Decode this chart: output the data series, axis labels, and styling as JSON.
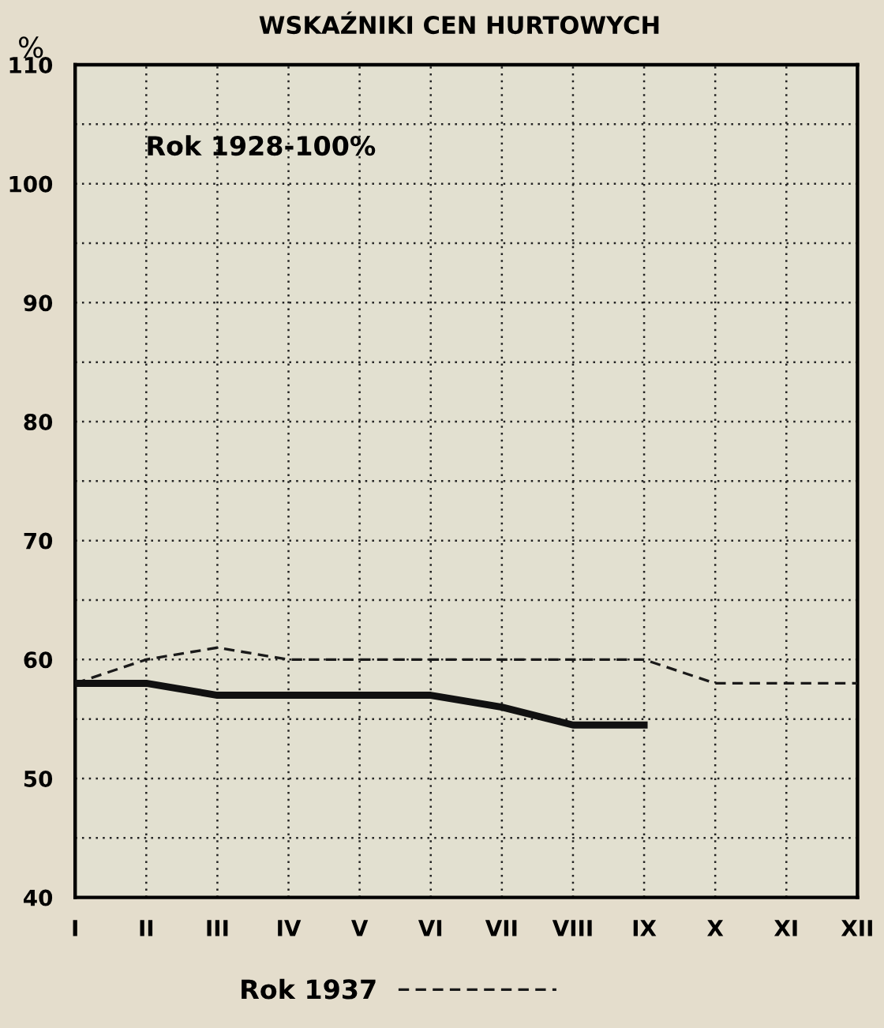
{
  "chart_data": {
    "type": "line",
    "title": "WSKAŹNIKI CEN HURTOWYCH",
    "ylabel": "%",
    "annotations": [
      "Rok 1928-100%"
    ],
    "categories": [
      "I",
      "II",
      "III",
      "IV",
      "V",
      "VI",
      "VII",
      "VIII",
      "IX",
      "X",
      "XI",
      "XII"
    ],
    "series": [
      {
        "name": "Rok 1937",
        "color": "#1a1a1a",
        "line_style": "dashed",
        "values": [
          58,
          60,
          61,
          60,
          60,
          60,
          60,
          60,
          60,
          58,
          58,
          58
        ]
      },
      {
        "color": "#111111",
        "line_style": "solid",
        "values": [
          58,
          58,
          57,
          57,
          57,
          57,
          56,
          54.5,
          54.5,
          null,
          null,
          null
        ]
      }
    ],
    "ylim": [
      40,
      110
    ],
    "yticks": [
      40,
      {
        "value": 45,
        "label": null
      },
      50,
      {
        "value": 55,
        "label": null
      },
      60,
      {
        "value": 65,
        "label": null
      },
      70,
      {
        "value": 75,
        "label": null
      },
      80,
      {
        "value": 85,
        "label": null
      },
      90,
      {
        "value": 95,
        "label": null
      },
      100,
      {
        "value": 105,
        "label": null
      },
      110
    ],
    "grid": true,
    "legend": "bottom",
    "marker": "none"
  }
}
